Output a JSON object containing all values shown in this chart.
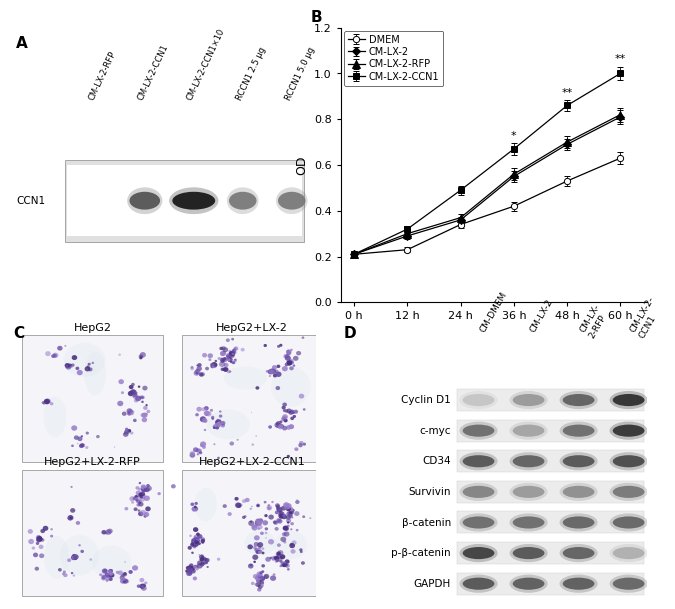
{
  "panel_B": {
    "x": [
      0,
      12,
      24,
      36,
      48,
      60
    ],
    "series": {
      "DMEM": [
        0.21,
        0.23,
        0.34,
        0.42,
        0.53,
        0.63
      ],
      "CM-LX-2": [
        0.21,
        0.29,
        0.36,
        0.55,
        0.69,
        0.81
      ],
      "CM-LX-2-RFP": [
        0.21,
        0.3,
        0.37,
        0.56,
        0.7,
        0.82
      ],
      "CM-LX-2-CCN1": [
        0.21,
        0.32,
        0.49,
        0.67,
        0.86,
        1.0
      ]
    },
    "errors": {
      "DMEM": [
        0.01,
        0.01,
        0.015,
        0.02,
        0.02,
        0.025
      ],
      "CM-LX-2": [
        0.01,
        0.015,
        0.015,
        0.025,
        0.025,
        0.03
      ],
      "CM-LX-2-RFP": [
        0.01,
        0.015,
        0.015,
        0.025,
        0.025,
        0.03
      ],
      "CM-LX-2-CCN1": [
        0.01,
        0.015,
        0.02,
        0.025,
        0.025,
        0.03
      ]
    },
    "markers": {
      "DMEM": "o",
      "CM-LX-2": "D",
      "CM-LX-2-RFP": "^",
      "CM-LX-2-CCN1": "s"
    },
    "ylabel": "OD",
    "xlabel_ticks": [
      "0 h",
      "12 h",
      "24 h",
      "36 h",
      "48 h",
      "60 h"
    ],
    "ylim": [
      0,
      1.2
    ],
    "yticks": [
      0,
      0.2,
      0.4,
      0.6,
      0.8,
      1.0,
      1.2
    ],
    "sig_36": "*",
    "sig_48": "**",
    "sig_60": "**"
  },
  "panel_A": {
    "label": "CCN1",
    "col_labels": [
      "CM-LX-2-RFP",
      "CM-LX-2-CCN1",
      "CM-LX-2-CCN1×10",
      "RCCN1 2.5 μg",
      "RCCN1 5.0 μg"
    ],
    "band_intensities": [
      0.05,
      0.7,
      0.95,
      0.55,
      0.55
    ]
  },
  "panel_C": {
    "titles": [
      "HepG2",
      "HepG2+LX-2",
      "HepG2+LX-2-RFP",
      "HepG2+LX-2-CCN1"
    ],
    "colony_counts": [
      12,
      16,
      14,
      22
    ],
    "density": [
      0.5,
      0.75,
      0.6,
      0.95
    ]
  },
  "panel_D": {
    "col_labels": [
      "CM-DMEM",
      "CM-LX-2",
      "CM-LX-\n2-RFP",
      "CM-LX-2-\nCCN1"
    ],
    "row_labels": [
      "Cyclin D1",
      "c-myc",
      "CD34",
      "Survivin",
      "β-catenin",
      "p-β-catenin",
      "GAPDH"
    ],
    "band_patterns": {
      "Cyclin D1": [
        0.25,
        0.45,
        0.7,
        0.92
      ],
      "c-myc": [
        0.65,
        0.4,
        0.65,
        0.9
      ],
      "CD34": [
        0.75,
        0.7,
        0.75,
        0.8
      ],
      "Survivin": [
        0.55,
        0.45,
        0.5,
        0.6
      ],
      "β-catenin": [
        0.65,
        0.65,
        0.68,
        0.68
      ],
      "p-β-catenin": [
        0.85,
        0.75,
        0.7,
        0.35
      ],
      "GAPDH": [
        0.75,
        0.72,
        0.72,
        0.68
      ]
    }
  },
  "background": "#ffffff"
}
